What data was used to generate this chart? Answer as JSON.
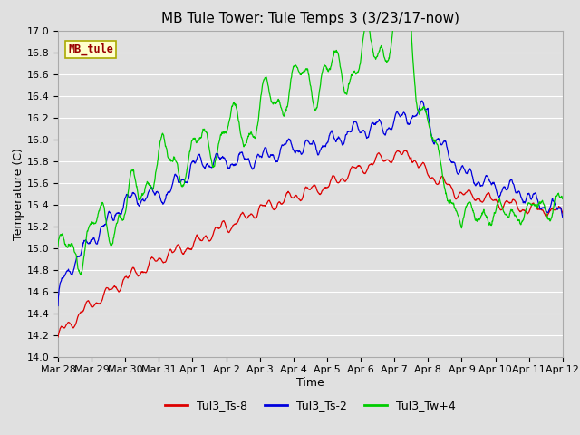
{
  "title": "MB Tule Tower: Tule Temps 3 (3/23/17-now)",
  "xlabel": "Time",
  "ylabel": "Temperature (C)",
  "ylim": [
    14.0,
    17.0
  ],
  "yticks": [
    14.0,
    14.2,
    14.4,
    14.6,
    14.8,
    15.0,
    15.2,
    15.4,
    15.6,
    15.8,
    16.0,
    16.2,
    16.4,
    16.6,
    16.8,
    17.0
  ],
  "xtick_labels": [
    "Mar 28",
    "Mar 29",
    "Mar 30",
    "Mar 31",
    "Apr 1",
    "Apr 2",
    "Apr 3",
    "Apr 4",
    "Apr 5",
    "Apr 6",
    "Apr 7",
    "Apr 8",
    "Apr 9",
    "Apr 10",
    "Apr 11",
    "Apr 12"
  ],
  "bg_color": "#e0e0e0",
  "plot_bg_color": "#e0e0e0",
  "grid_color": "#ffffff",
  "line_red": "#dd0000",
  "line_blue": "#0000dd",
  "line_green": "#00cc00",
  "legend_label_red": "Tul3_Ts-8",
  "legend_label_blue": "Tul3_Ts-2",
  "legend_label_green": "Tul3_Tw+4",
  "station_label": "MB_tule",
  "station_box_facecolor": "#ffffcc",
  "station_box_edgecolor": "#aaaa00",
  "title_fontsize": 11,
  "axis_label_fontsize": 9,
  "tick_fontsize": 8,
  "legend_fontsize": 9,
  "n_points": 1500
}
